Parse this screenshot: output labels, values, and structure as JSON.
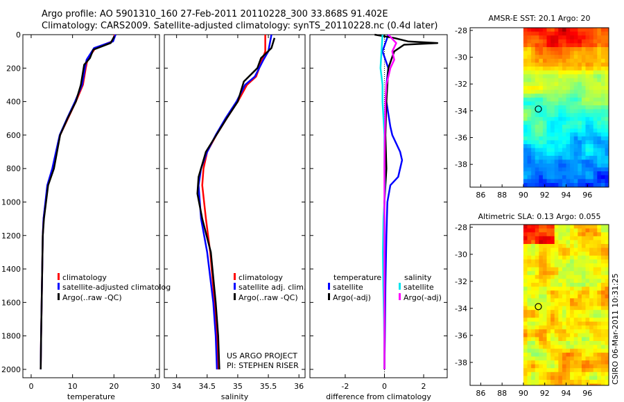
{
  "header": {
    "line1": "Argo profile: AO 5901310_160 27-Feb-2011 20110228_300 33.868S 91.402E",
    "line2": "Climatology: CARS2009. Satellite-adjusted climatology: synTS_20110228.nc (0.4d later)"
  },
  "colors": {
    "climatology": "#ff0000",
    "satellite": "#0000ff",
    "argo": "#000000",
    "cyan": "#00e5ee",
    "magenta": "#ff00ff"
  },
  "footer": {
    "project": "US ARGO PROJECT",
    "pi": "PI: STEPHEN RISER",
    "stamp": "CSIRO 06-Mar-2011 10:31:25"
  },
  "chart_data": [
    {
      "type": "line",
      "xlabel": "temperature",
      "xlim": [
        -2,
        31
      ],
      "ylim": [
        2050,
        0
      ],
      "xticks": [
        0,
        10,
        20,
        30
      ],
      "yticks": [
        0,
        200,
        400,
        600,
        800,
        1000,
        1200,
        1400,
        1600,
        1800,
        2000
      ],
      "legend": [
        "climatology",
        "satellite-adjusted climatolog",
        "Argo(..raw -QC)"
      ],
      "series": [
        {
          "name": "climatology",
          "color": "climatology",
          "x": [
            20.2,
            19.6,
            15.5,
            13.6,
            13.2,
            12.5,
            10.8,
            8.9,
            7.0,
            5.2,
            4.0,
            3.0,
            2.8,
            2.6,
            2.4,
            2.3
          ],
          "y": [
            0,
            40,
            80,
            150,
            200,
            300,
            400,
            500,
            600,
            800,
            900,
            1100,
            1200,
            1500,
            1800,
            2000
          ]
        },
        {
          "name": "satellite-adjusted climatolog",
          "color": "satellite",
          "x": [
            20.4,
            19.8,
            15.2,
            13.4,
            13.0,
            12.3,
            10.6,
            8.7,
            6.9,
            5.1,
            3.9,
            3.0,
            2.8,
            2.6,
            2.4,
            2.3
          ],
          "y": [
            0,
            40,
            80,
            150,
            200,
            300,
            400,
            500,
            600,
            800,
            900,
            1100,
            1200,
            1500,
            1800,
            2000
          ]
        },
        {
          "name": "Argo(..raw -QC)",
          "color": "argo",
          "x": [
            20.1,
            19.2,
            15.0,
            14.2,
            12.8,
            12.0,
            10.8,
            8.8,
            7.0,
            5.5,
            4.1,
            3.1,
            2.8,
            2.6,
            2.4,
            2.3
          ],
          "y": [
            10,
            50,
            90,
            140,
            180,
            300,
            400,
            500,
            600,
            800,
            900,
            1100,
            1200,
            1500,
            1800,
            2000
          ]
        }
      ]
    },
    {
      "type": "line",
      "xlabel": "salinity",
      "xlim": [
        33.8,
        36.1
      ],
      "ylim": [
        2050,
        0
      ],
      "xticks": [
        34,
        34.5,
        35,
        35.5,
        36
      ],
      "legend": [
        "climatology",
        "satellite adj. clim.",
        "Argo(..raw -QC)"
      ],
      "series": [
        {
          "name": "climatology",
          "color": "climatology",
          "x": [
            35.45,
            35.45,
            35.4,
            35.3,
            35.15,
            35.0,
            34.82,
            34.65,
            34.5,
            34.44,
            34.42,
            34.48,
            34.55,
            34.62,
            34.66,
            34.68
          ],
          "y": [
            0,
            100,
            150,
            250,
            300,
            400,
            500,
            600,
            700,
            800,
            900,
            1100,
            1300,
            1600,
            1800,
            2000
          ]
        },
        {
          "name": "satellite adj. clim.",
          "color": "satellite",
          "x": [
            35.55,
            35.5,
            35.42,
            35.28,
            35.12,
            34.98,
            34.8,
            34.64,
            34.5,
            34.4,
            34.36,
            34.4,
            34.5,
            34.6,
            34.64,
            34.66
          ],
          "y": [
            0,
            100,
            150,
            250,
            300,
            400,
            500,
            600,
            700,
            800,
            900,
            1100,
            1300,
            1600,
            1800,
            2000
          ]
        },
        {
          "name": "Argo(..raw -QC)",
          "color": "argo",
          "x": [
            35.6,
            35.55,
            35.38,
            35.32,
            35.1,
            35.0,
            34.82,
            34.65,
            34.48,
            34.36,
            34.34,
            34.42,
            34.56,
            34.64,
            34.68,
            34.7
          ],
          "y": [
            20,
            80,
            140,
            200,
            280,
            400,
            500,
            600,
            700,
            850,
            950,
            1100,
            1300,
            1600,
            1800,
            2000
          ]
        }
      ]
    },
    {
      "type": "line",
      "xlabel": "difference from climatology",
      "xlim": [
        -3.8,
        3.2
      ],
      "ylim": [
        2050,
        0
      ],
      "xticks": [
        -2,
        0,
        2
      ],
      "legend": [
        "temperature",
        "satellite",
        "Argo(-adj)",
        "salinity",
        "satellite",
        "Argo(-adj)"
      ],
      "series": [
        {
          "name": "satellite",
          "color": "satellite",
          "x": [
            0.2,
            -0.1,
            0.2,
            0.1,
            0.1,
            0.3,
            0.4,
            0.8,
            0.9,
            0.7,
            0.3,
            0.15,
            0.1,
            0.05,
            0.02,
            0.0
          ],
          "y": [
            0,
            100,
            200,
            300,
            400,
            550,
            600,
            700,
            750,
            850,
            900,
            1000,
            1200,
            1500,
            1800,
            2000
          ]
        },
        {
          "name": "Argo(-adj)",
          "color": "argo",
          "x": [
            -0.5,
            0.5,
            1.2,
            2.7,
            1.0,
            0.5,
            0.2,
            0.1,
            0.05,
            0.1,
            0.0,
            -0.05,
            0.0,
            0.0,
            0.0,
            0.0
          ],
          "y": [
            0,
            20,
            40,
            50,
            60,
            100,
            200,
            400,
            600,
            800,
            1000,
            1200,
            1400,
            1600,
            1800,
            2000
          ]
        },
        {
          "name": "satellite",
          "color": "cyan",
          "x": [
            -0.1,
            -0.2,
            -0.1,
            -0.1,
            -0.05,
            0.0,
            0.0,
            0.0,
            0.02,
            0.0,
            -0.05,
            -0.08,
            -0.06,
            -0.02,
            0.0,
            0.0
          ],
          "y": [
            0,
            200,
            300,
            400,
            500,
            600,
            700,
            800,
            900,
            1000,
            1100,
            1300,
            1500,
            1700,
            1900,
            2000
          ]
        },
        {
          "name": "Argo(-adj)",
          "color": "magenta",
          "x": [
            0.2,
            0.6,
            0.4,
            0.5,
            0.3,
            0.1,
            0.05,
            0.02,
            0.0,
            0.0,
            0.0,
            0.0
          ],
          "y": [
            0,
            50,
            100,
            150,
            200,
            300,
            400,
            600,
            800,
            1000,
            1400,
            2000
          ]
        }
      ]
    },
    {
      "type": "heatmap",
      "title": "AMSR-E SST: 20.1 Argo: 20",
      "xlim": [
        85,
        98
      ],
      "ylim": [
        -39.7,
        -27.8
      ],
      "xticks": [
        86,
        88,
        90,
        92,
        94,
        96
      ],
      "yticks": [
        -28,
        -30,
        -32,
        -34,
        -36,
        -38
      ],
      "marker": {
        "lon": 91.4,
        "lat": -33.87
      }
    },
    {
      "type": "heatmap",
      "title": "Altimetric SLA: 0.13 Argo: 0.055",
      "xlim": [
        85,
        98
      ],
      "ylim": [
        -39.7,
        -27.8
      ],
      "xticks": [
        86,
        88,
        90,
        92,
        94,
        96
      ],
      "yticks": [
        -28,
        -30,
        -32,
        -34,
        -36,
        -38
      ],
      "marker": {
        "lon": 91.4,
        "lat": -33.87
      }
    }
  ]
}
